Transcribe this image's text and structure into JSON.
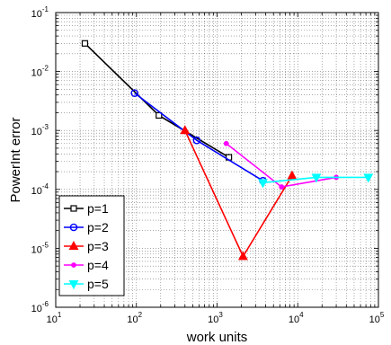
{
  "chart_data": {
    "type": "line",
    "xlabel": "work units",
    "ylabel": "PowerInt error",
    "xscale": "log",
    "yscale": "log",
    "xlim": [
      10,
      100000
    ],
    "ylim": [
      1e-06,
      0.1
    ],
    "grid": true,
    "legend_position": "bottom-left",
    "x_ticks": [
      {
        "base": "10",
        "exp": "1"
      },
      {
        "base": "10",
        "exp": "2"
      },
      {
        "base": "10",
        "exp": "3"
      },
      {
        "base": "10",
        "exp": "4"
      },
      {
        "base": "10",
        "exp": "5"
      }
    ],
    "y_ticks": [
      {
        "base": "10",
        "exp": "-6"
      },
      {
        "base": "10",
        "exp": "-5"
      },
      {
        "base": "10",
        "exp": "-4"
      },
      {
        "base": "10",
        "exp": "-3"
      },
      {
        "base": "10",
        "exp": "-2"
      },
      {
        "base": "10",
        "exp": "-1"
      }
    ],
    "series": [
      {
        "name": "p=1",
        "color": "#000000",
        "marker": "square",
        "x": [
          23,
          190,
          1400
        ],
        "y": [
          0.03,
          0.0018,
          0.00035
        ]
      },
      {
        "name": "p=2",
        "color": "#0000ff",
        "marker": "circle",
        "x": [
          95,
          560,
          3700
        ],
        "y": [
          0.0043,
          0.00068,
          0.00014
        ]
      },
      {
        "name": "p=3",
        "color": "#ff0000",
        "marker": "triangle-up",
        "x": [
          400,
          2100,
          8500
        ],
        "y": [
          0.001,
          7.3e-06,
          0.00017
        ]
      },
      {
        "name": "p=4",
        "color": "#ff00ff",
        "marker": "point",
        "x": [
          1300,
          6300,
          30000
        ],
        "y": [
          0.0006,
          0.00011,
          0.00016
        ]
      },
      {
        "name": "p=5",
        "color": "#00ffff",
        "marker": "triangle-down",
        "x": [
          3700,
          17000,
          75000
        ],
        "y": [
          0.00013,
          0.00016,
          0.00016
        ]
      }
    ]
  }
}
